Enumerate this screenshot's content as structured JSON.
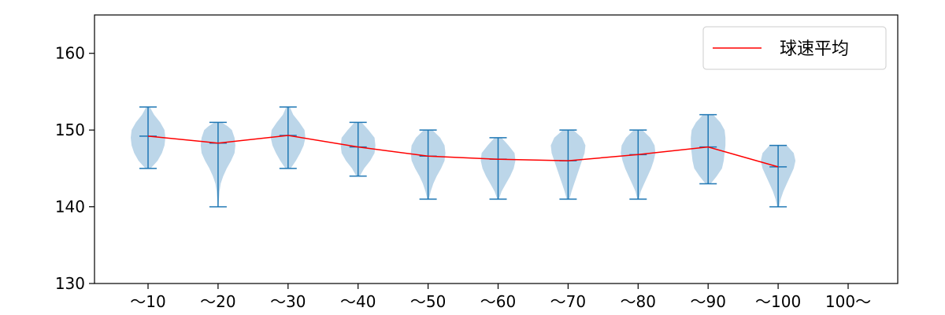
{
  "chart_data": {
    "type": "violin",
    "title": "",
    "xlabel": "",
    "ylabel": "",
    "ylim": [
      130,
      165
    ],
    "yticks": [
      130,
      140,
      150,
      160
    ],
    "categories": [
      "～10",
      "～20",
      "～30",
      "～40",
      "～50",
      "～60",
      "～70",
      "～80",
      "～90",
      "～100",
      "100～"
    ],
    "violins": [
      {
        "min": 145,
        "max": 153,
        "mean": 149.2,
        "profile": [
          [
            145,
            0.15
          ],
          [
            146,
            0.55
          ],
          [
            147,
            0.8
          ],
          [
            148,
            0.95
          ],
          [
            149,
            1.0
          ],
          [
            150,
            0.95
          ],
          [
            151,
            0.7
          ],
          [
            152,
            0.35
          ],
          [
            153,
            0.1
          ]
        ]
      },
      {
        "min": 140,
        "max": 151,
        "mean": 148.3,
        "profile": [
          [
            140,
            0.02
          ],
          [
            142,
            0.08
          ],
          [
            143,
            0.15
          ],
          [
            144,
            0.3
          ],
          [
            145,
            0.5
          ],
          [
            146,
            0.75
          ],
          [
            147,
            0.95
          ],
          [
            148,
            1.0
          ],
          [
            149,
            0.95
          ],
          [
            150,
            0.8
          ],
          [
            150.5,
            0.55
          ],
          [
            151,
            0.2
          ]
        ]
      },
      {
        "min": 145,
        "max": 153,
        "mean": 149.3,
        "profile": [
          [
            145,
            0.15
          ],
          [
            146,
            0.45
          ],
          [
            147,
            0.7
          ],
          [
            148,
            0.9
          ],
          [
            149,
            1.0
          ],
          [
            150,
            0.95
          ],
          [
            151,
            0.65
          ],
          [
            152,
            0.3
          ],
          [
            153,
            0.1
          ]
        ]
      },
      {
        "min": 144,
        "max": 151,
        "mean": 147.8,
        "profile": [
          [
            144,
            0.1
          ],
          [
            145,
            0.35
          ],
          [
            146,
            0.7
          ],
          [
            147,
            0.95
          ],
          [
            148,
            1.0
          ],
          [
            149,
            0.95
          ],
          [
            150,
            0.6
          ],
          [
            151,
            0.2
          ]
        ]
      },
      {
        "min": 141,
        "max": 150,
        "mean": 146.6,
        "profile": [
          [
            141,
            0.05
          ],
          [
            142,
            0.15
          ],
          [
            143,
            0.3
          ],
          [
            144,
            0.5
          ],
          [
            145,
            0.75
          ],
          [
            146,
            0.95
          ],
          [
            147,
            1.0
          ],
          [
            148,
            0.95
          ],
          [
            149,
            0.7
          ],
          [
            150,
            0.25
          ]
        ]
      },
      {
        "min": 141,
        "max": 149,
        "mean": 146.2,
        "profile": [
          [
            141,
            0.05
          ],
          [
            142,
            0.2
          ],
          [
            143,
            0.45
          ],
          [
            144,
            0.7
          ],
          [
            145,
            0.9
          ],
          [
            146,
            1.0
          ],
          [
            147,
            0.95
          ],
          [
            148,
            0.6
          ],
          [
            149,
            0.2
          ]
        ]
      },
      {
        "min": 141,
        "max": 150,
        "mean": 146.0,
        "profile": [
          [
            141,
            0.08
          ],
          [
            142,
            0.2
          ],
          [
            143,
            0.35
          ],
          [
            144,
            0.5
          ],
          [
            145,
            0.65
          ],
          [
            146,
            0.8
          ],
          [
            147,
            0.95
          ],
          [
            148,
            1.0
          ],
          [
            149,
            0.8
          ],
          [
            150,
            0.3
          ]
        ]
      },
      {
        "min": 141,
        "max": 150,
        "mean": 146.8,
        "profile": [
          [
            141,
            0.05
          ],
          [
            142,
            0.15
          ],
          [
            143,
            0.35
          ],
          [
            144,
            0.55
          ],
          [
            145,
            0.75
          ],
          [
            146,
            0.9
          ],
          [
            147,
            1.0
          ],
          [
            148,
            0.95
          ],
          [
            149,
            0.7
          ],
          [
            150,
            0.25
          ]
        ]
      },
      {
        "min": 143,
        "max": 152,
        "mean": 147.8,
        "profile": [
          [
            143,
            0.15
          ],
          [
            144,
            0.5
          ],
          [
            145,
            0.8
          ],
          [
            146,
            0.9
          ],
          [
            147,
            0.95
          ],
          [
            148,
            1.0
          ],
          [
            149,
            1.0
          ],
          [
            150,
            0.95
          ],
          [
            151,
            0.7
          ],
          [
            152,
            0.3
          ]
        ]
      },
      {
        "min": 140,
        "max": 148,
        "mean": 145.2,
        "profile": [
          [
            140,
            0.05
          ],
          [
            141,
            0.15
          ],
          [
            142,
            0.3
          ],
          [
            143,
            0.5
          ],
          [
            144,
            0.7
          ],
          [
            145,
            0.9
          ],
          [
            146,
            1.0
          ],
          [
            147,
            0.9
          ],
          [
            148,
            0.5
          ]
        ]
      },
      null
    ],
    "series": [
      {
        "name": "球速平均",
        "values": [
          149.2,
          148.3,
          149.3,
          147.8,
          146.6,
          146.2,
          146.0,
          146.8,
          147.8,
          145.2,
          null
        ],
        "color": "#ff0000"
      }
    ],
    "legend_position": "top-right",
    "grid": false,
    "colors": {
      "violin_fill": "#a6c8e2",
      "violin_line": "#1f77b4",
      "mean_line": "#ff0000",
      "axis": "#000000"
    }
  }
}
